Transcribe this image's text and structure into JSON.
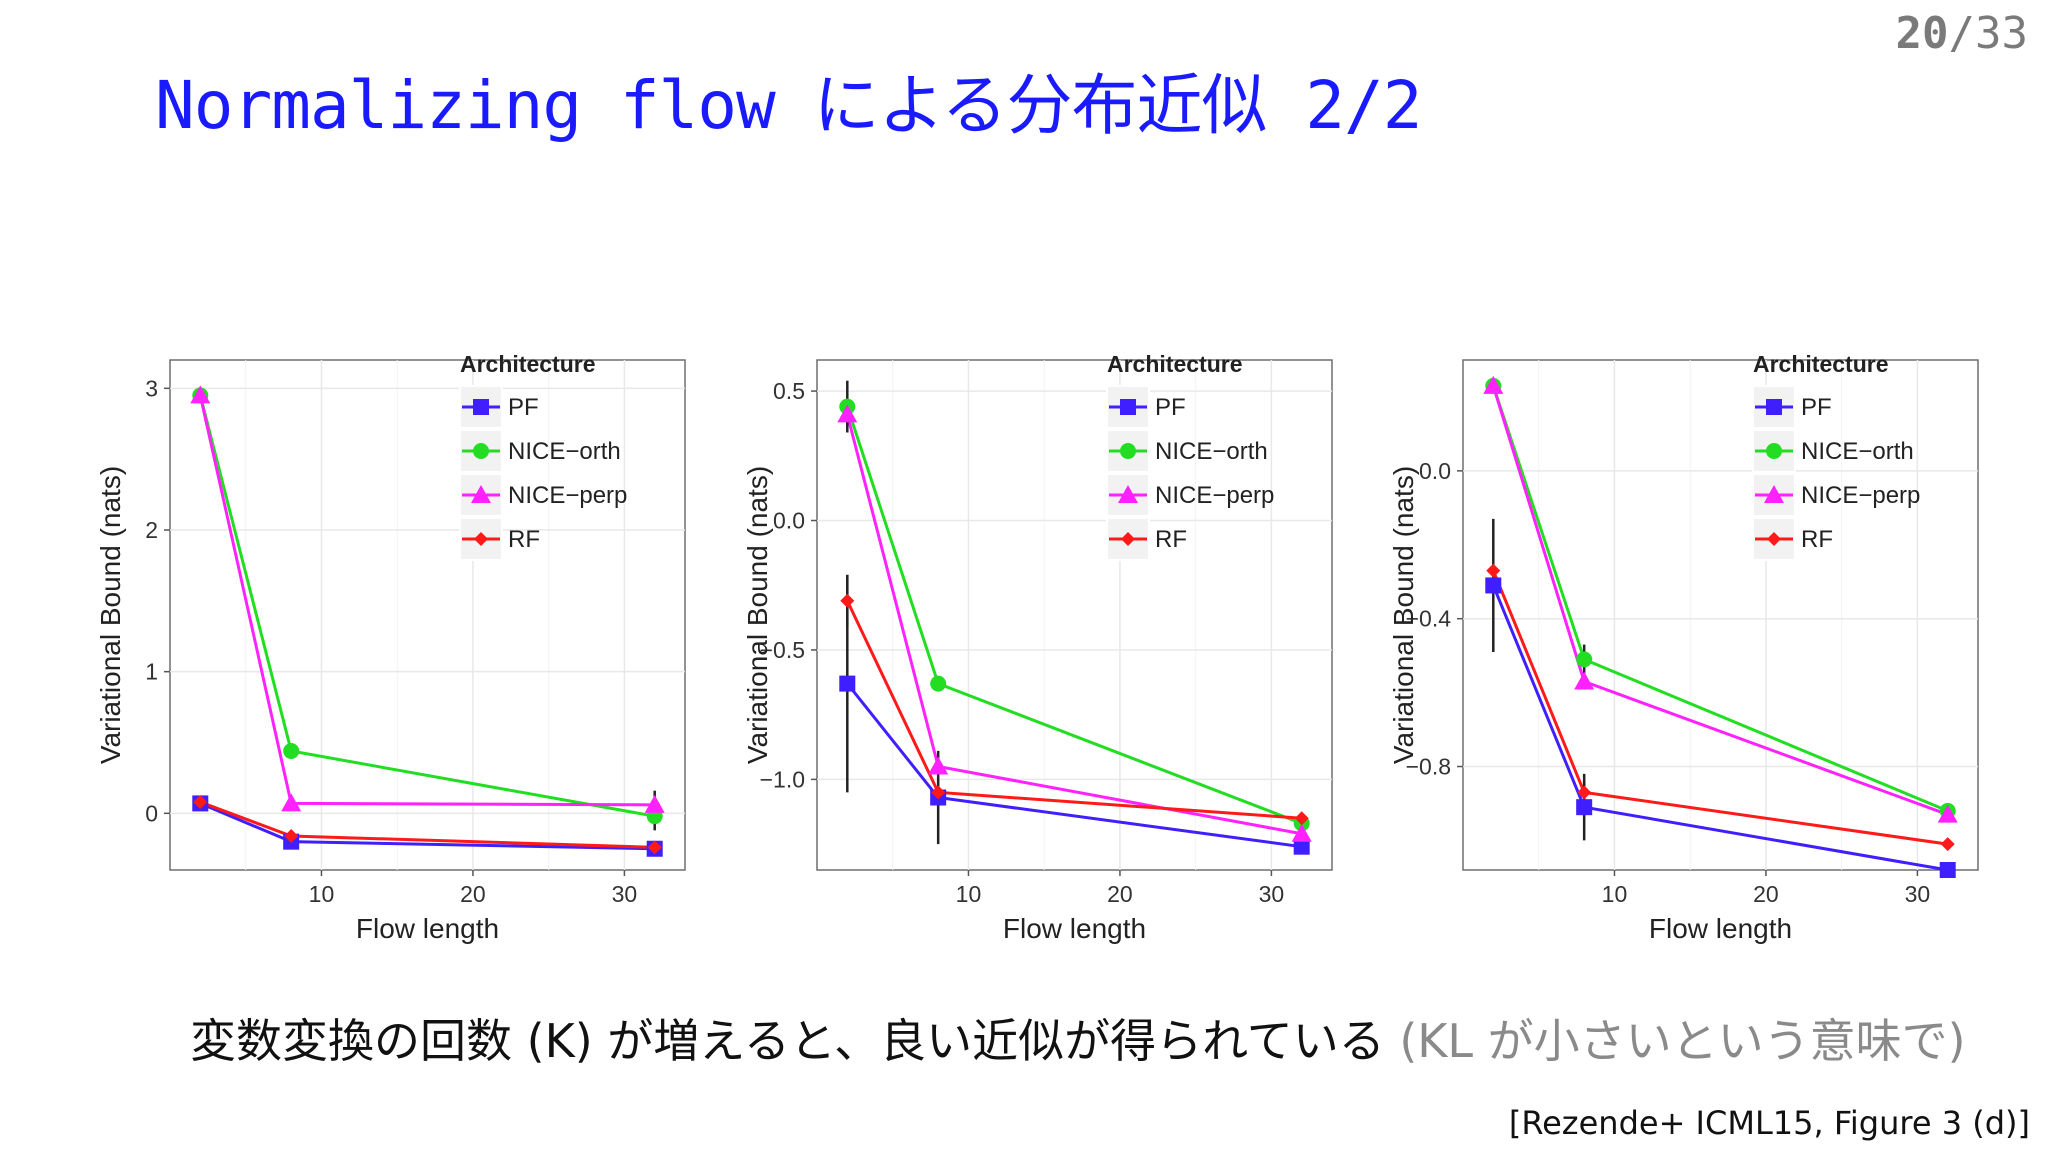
{
  "page_number": {
    "current": "20",
    "total": "/33"
  },
  "slide_title": "Normalizing flow による分布近似 2/2",
  "caption": {
    "main": "変数変換の回数 (K) が増えると、良い近似が得られている",
    "note": " (KL が小さいという意味で)"
  },
  "citation": "[Rezende+ ICML15, Figure 3 (d)]",
  "chart_data": [
    {
      "type": "line",
      "xlabel": "Flow length",
      "ylabel": "Variational Bound (nats)",
      "xlim": [
        0,
        34
      ],
      "ylim": [
        -0.4,
        3.2
      ],
      "xticks": [
        10,
        20,
        30
      ],
      "yticks": [
        0,
        1,
        2,
        3
      ],
      "ytick_labels": [
        "0",
        "1",
        "2",
        "3"
      ],
      "grid": true,
      "legend": {
        "title": "Architecture",
        "position": "top-right"
      },
      "x": [
        2,
        8,
        32
      ],
      "series": [
        {
          "name": "PF",
          "color": "#3f1fff",
          "marker": "square",
          "values": [
            0.07,
            -0.2,
            -0.25
          ],
          "errors": [
            0,
            0,
            0
          ]
        },
        {
          "name": "NICE−orth",
          "color": "#22dd22",
          "marker": "circle",
          "values": [
            2.95,
            0.44,
            -0.02
          ],
          "errors": [
            0,
            0,
            0.1
          ]
        },
        {
          "name": "NICE−perp",
          "color": "#ff22ff",
          "marker": "triangle",
          "values": [
            2.95,
            0.07,
            0.06
          ],
          "errors": [
            0,
            0,
            0.1
          ]
        },
        {
          "name": "RF",
          "color": "#ff1a1a",
          "marker": "diamond",
          "values": [
            0.08,
            -0.16,
            -0.24
          ],
          "errors": [
            0,
            0,
            0
          ]
        }
      ]
    },
    {
      "type": "line",
      "xlabel": "Flow length",
      "ylabel": "Variational Bound (nats)",
      "xlim": [
        0,
        34
      ],
      "ylim": [
        -1.35,
        0.62
      ],
      "xticks": [
        10,
        20,
        30
      ],
      "yticks": [
        0.5,
        0,
        -0.5,
        -1.0
      ],
      "ytick_labels": [
        "0.5",
        "0.0",
        "−0.5",
        "−1.0"
      ],
      "grid": true,
      "legend": {
        "title": "Architecture",
        "position": "top-right"
      },
      "x": [
        2,
        8,
        32
      ],
      "series": [
        {
          "name": "PF",
          "color": "#3f1fff",
          "marker": "square",
          "values": [
            -0.63,
            -1.07,
            -1.26
          ],
          "errors": [
            0.42,
            0.18,
            0
          ]
        },
        {
          "name": "NICE−orth",
          "color": "#22dd22",
          "marker": "circle",
          "values": [
            0.44,
            -0.63,
            -1.17
          ],
          "errors": [
            0.1,
            0,
            0
          ]
        },
        {
          "name": "NICE−perp",
          "color": "#ff22ff",
          "marker": "triangle",
          "values": [
            0.41,
            -0.95,
            -1.21
          ],
          "errors": [
            0.05,
            0,
            0
          ]
        },
        {
          "name": "RF",
          "color": "#ff1a1a",
          "marker": "diamond",
          "values": [
            -0.31,
            -1.05,
            -1.15
          ],
          "errors": [
            0.1,
            0,
            0
          ]
        }
      ]
    },
    {
      "type": "line",
      "xlabel": "Flow length",
      "ylabel": "Variational Bound (nats)",
      "xlim": [
        0,
        34
      ],
      "ylim": [
        -1.08,
        0.3
      ],
      "xticks": [
        10,
        20,
        30
      ],
      "yticks": [
        0.0,
        -0.4,
        -0.8
      ],
      "ytick_labels": [
        "0.0",
        "−0.4",
        "−0.8"
      ],
      "grid": true,
      "legend": {
        "title": "Architecture",
        "position": "top-right"
      },
      "x": [
        2,
        8,
        32
      ],
      "series": [
        {
          "name": "PF",
          "color": "#3f1fff",
          "marker": "square",
          "values": [
            -0.31,
            -0.91,
            -1.08
          ],
          "errors": [
            0.18,
            0.09,
            0
          ]
        },
        {
          "name": "NICE−orth",
          "color": "#22dd22",
          "marker": "circle",
          "values": [
            0.23,
            -0.51,
            -0.92
          ],
          "errors": [
            0,
            0.04,
            0
          ]
        },
        {
          "name": "NICE−perp",
          "color": "#ff22ff",
          "marker": "triangle",
          "values": [
            0.23,
            -0.57,
            -0.93
          ],
          "errors": [
            0,
            0,
            0
          ]
        },
        {
          "name": "RF",
          "color": "#ff1a1a",
          "marker": "diamond",
          "values": [
            -0.27,
            -0.87,
            -1.01
          ],
          "errors": [
            0,
            0.03,
            0
          ]
        }
      ]
    }
  ]
}
